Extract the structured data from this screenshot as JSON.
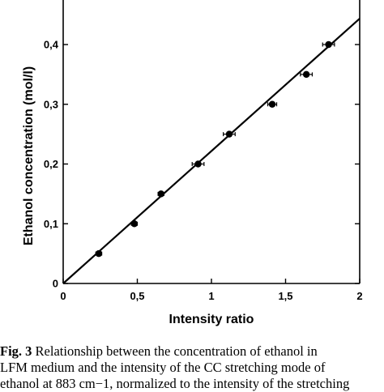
{
  "chart_data": {
    "type": "scatter",
    "xlabel": "Intensity ratio",
    "ylabel": "Ethanol concentration (mol/l)",
    "xlim": [
      0,
      2
    ],
    "ylim": [
      0,
      0.4
    ],
    "xticks": [
      0,
      0.5,
      1,
      1.5,
      2
    ],
    "xtick_labels": [
      "0",
      "0,5",
      "1",
      "1,5",
      "2"
    ],
    "yticks": [
      0,
      0.1,
      0.2,
      0.3,
      0.4
    ],
    "ytick_labels": [
      "0",
      "0,1",
      "0,2",
      "0,3",
      "0,4"
    ],
    "grid": false,
    "points": [
      {
        "x": 0.24,
        "y": 0.05,
        "xerr": 0.02
      },
      {
        "x": 0.48,
        "y": 0.1,
        "xerr": 0.02
      },
      {
        "x": 0.66,
        "y": 0.15,
        "xerr": 0.02
      },
      {
        "x": 0.91,
        "y": 0.2,
        "xerr": 0.04
      },
      {
        "x": 1.12,
        "y": 0.25,
        "xerr": 0.04
      },
      {
        "x": 1.41,
        "y": 0.3,
        "xerr": 0.03
      },
      {
        "x": 1.64,
        "y": 0.35,
        "xerr": 0.04
      },
      {
        "x": 1.79,
        "y": 0.4,
        "xerr": 0.04
      }
    ],
    "fit_line": {
      "x": [
        0,
        2
      ],
      "y": [
        0,
        0.4435
      ]
    }
  },
  "caption": {
    "label": "Fig. 3",
    "lines": [
      " Relationship between the concentration of ethanol in",
      "LFM medium and the intensity of the CC stretching mode of",
      "ethanol at 883 cm−1, normalized to the intensity of the stretching"
    ]
  }
}
